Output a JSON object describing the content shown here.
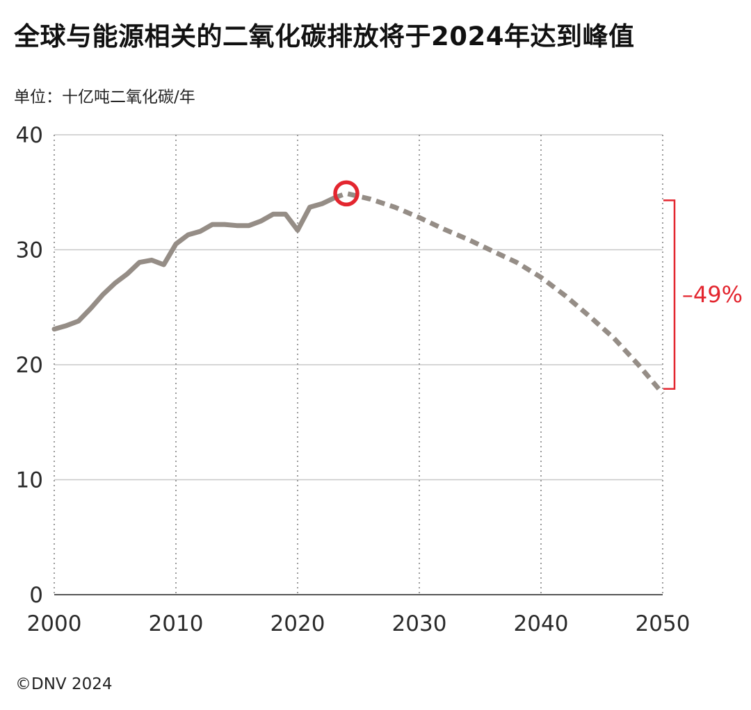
{
  "title": "全球与能源相关的二氧化碳排放将于2024年达到峰值",
  "unit_label": "单位：十亿吨二氧化碳/年",
  "copyright": "©DNV 2024",
  "colors": {
    "series": "#958d86",
    "accent": "#e3262f",
    "grid": "#c8c8c8",
    "axis": "#555555"
  },
  "chart_data": {
    "type": "line",
    "title": "全球与能源相关的二氧化碳排放将于2024年达到峰值",
    "ylabel": "单位：十亿吨二氧化碳/年",
    "xlabel": "",
    "xlim": [
      2000,
      2050
    ],
    "ylim": [
      0,
      40
    ],
    "x_ticks": [
      "2000",
      "2010",
      "2020",
      "2030",
      "2040",
      "2050"
    ],
    "y_ticks": [
      "0",
      "10",
      "20",
      "30",
      "40"
    ],
    "grid": {
      "horizontal": "solid",
      "vertical": "dotted"
    },
    "series": [
      {
        "style": "solid",
        "x": [
          2000,
          2001,
          2002,
          2003,
          2004,
          2005,
          2006,
          2007,
          2008,
          2009,
          2010,
          2011,
          2012,
          2013,
          2014,
          2015,
          2016,
          2017,
          2018,
          2019,
          2020,
          2021,
          2022,
          2023
        ],
        "y": [
          23.1,
          23.4,
          23.8,
          24.9,
          26.1,
          27.1,
          27.9,
          28.9,
          29.1,
          28.7,
          30.5,
          31.3,
          31.6,
          32.2,
          32.2,
          32.1,
          32.1,
          32.5,
          33.1,
          33.1,
          31.7,
          33.7,
          34.0,
          34.5
        ]
      },
      {
        "style": "dashed",
        "x": [
          2023,
          2024,
          2026,
          2028,
          2030,
          2032,
          2034,
          2036,
          2038,
          2040,
          2042,
          2044,
          2046,
          2048,
          2050
        ],
        "y": [
          34.5,
          34.9,
          34.4,
          33.7,
          32.8,
          31.8,
          30.9,
          29.9,
          28.9,
          27.6,
          26.0,
          24.2,
          22.3,
          20.0,
          17.5
        ]
      }
    ],
    "annotations": [
      {
        "type": "peak-marker",
        "x": 2024,
        "y": 34.9
      },
      {
        "type": "change-bracket",
        "label": "–49%",
        "from_y": 34.3,
        "to_y": 17.9
      }
    ]
  }
}
